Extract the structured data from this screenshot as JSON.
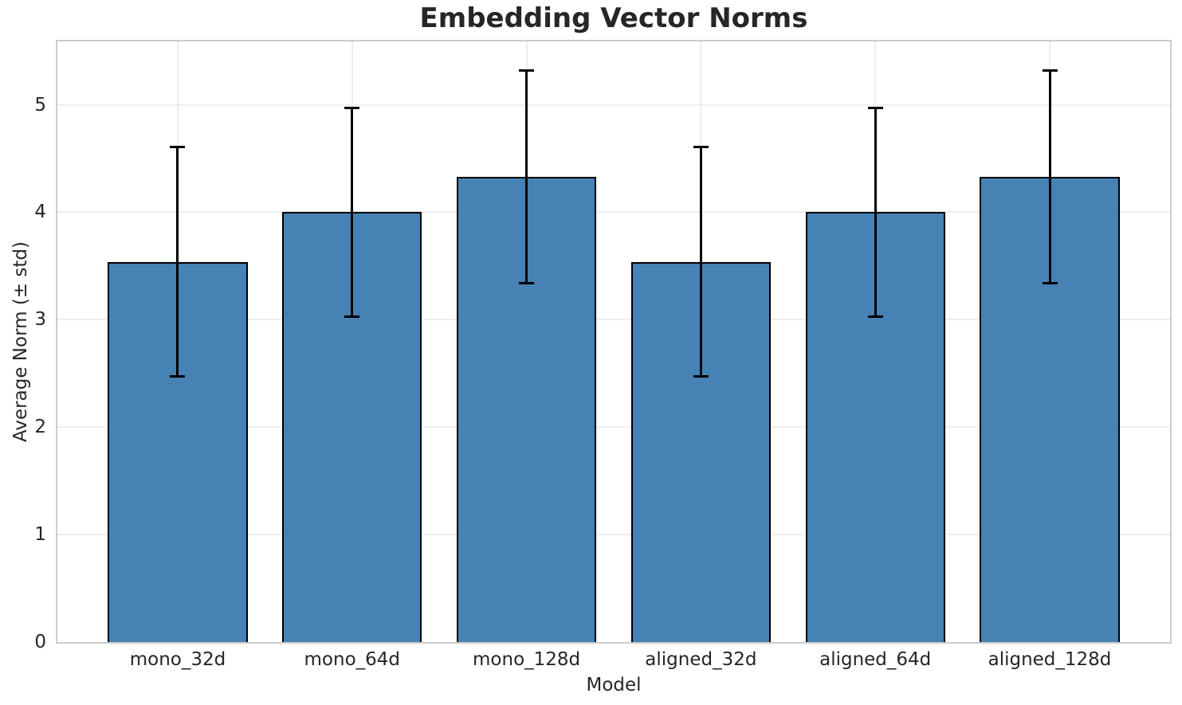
{
  "chart_data": {
    "type": "bar",
    "title": "Embedding Vector Norms",
    "xlabel": "Model",
    "ylabel": "Average Norm (± std)",
    "categories": [
      "mono_32d",
      "mono_64d",
      "mono_128d",
      "aligned_32d",
      "aligned_64d",
      "aligned_128d"
    ],
    "values": [
      3.54,
      4.0,
      4.33,
      3.54,
      4.0,
      4.33
    ],
    "errors": [
      1.07,
      0.97,
      0.99,
      1.07,
      0.97,
      0.99
    ],
    "yticks": [
      0,
      1,
      2,
      3,
      4,
      5
    ],
    "ylim": [
      0,
      5.59
    ],
    "xlim": [
      -0.69,
      5.69
    ],
    "bar_width": 0.8,
    "grid": true,
    "legend_position": "none",
    "colors": {
      "bar_fill": "#4682b4",
      "bar_edge": "#000000",
      "error_bar": "#000000",
      "grid_line": "#ededed",
      "spine": "#cccccc",
      "text": "#262626"
    }
  }
}
